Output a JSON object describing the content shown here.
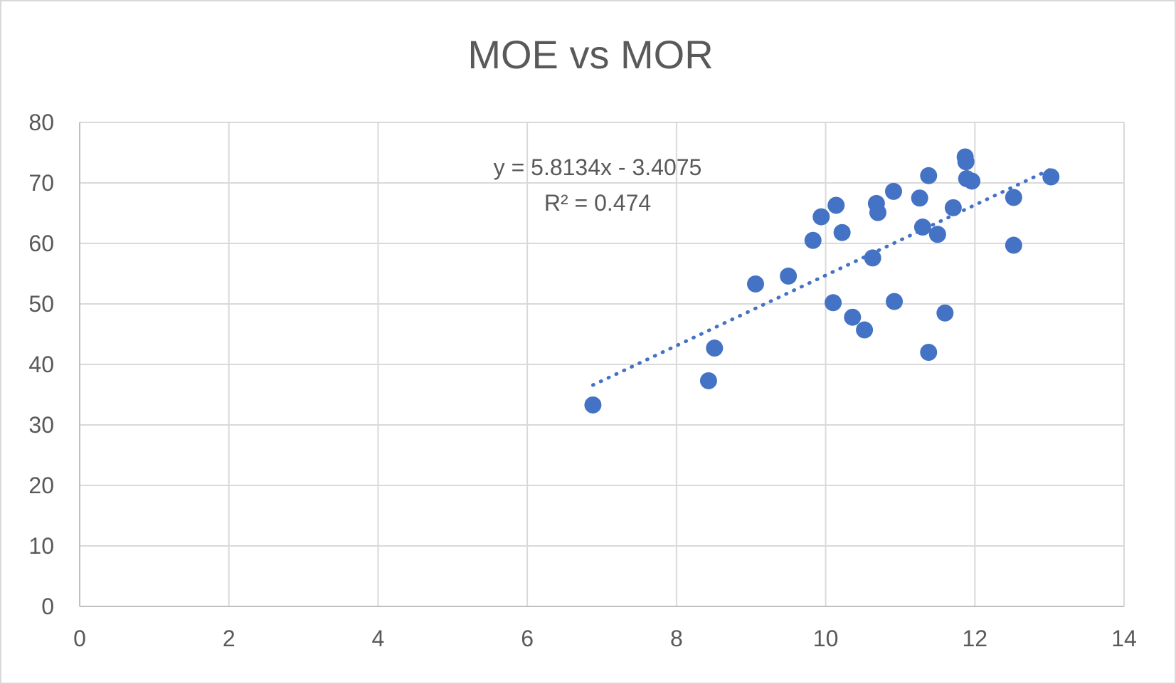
{
  "chart_data": {
    "type": "scatter",
    "title": "MOE vs MOR",
    "xlabel": "",
    "ylabel": "",
    "xlim": [
      0,
      14
    ],
    "ylim": [
      0,
      80
    ],
    "x_ticks": [
      "0",
      "2",
      "4",
      "6",
      "8",
      "10",
      "12",
      "14"
    ],
    "y_ticks": [
      "0",
      "10",
      "20",
      "30",
      "40",
      "50",
      "60",
      "70",
      "80"
    ],
    "grid": true,
    "legend": "none",
    "marker_color": "#4472c4",
    "series": [
      {
        "points": [
          {
            "x": 6.88,
            "y": 33.3
          },
          {
            "x": 8.43,
            "y": 37.3
          },
          {
            "x": 8.51,
            "y": 42.7
          },
          {
            "x": 9.06,
            "y": 53.3
          },
          {
            "x": 9.5,
            "y": 54.6
          },
          {
            "x": 9.83,
            "y": 60.5
          },
          {
            "x": 9.94,
            "y": 64.4
          },
          {
            "x": 10.1,
            "y": 50.2
          },
          {
            "x": 10.14,
            "y": 66.3
          },
          {
            "x": 10.22,
            "y": 61.8
          },
          {
            "x": 10.36,
            "y": 47.8
          },
          {
            "x": 10.52,
            "y": 45.7
          },
          {
            "x": 10.63,
            "y": 57.6
          },
          {
            "x": 10.68,
            "y": 66.6
          },
          {
            "x": 10.7,
            "y": 65.1
          },
          {
            "x": 10.91,
            "y": 68.6
          },
          {
            "x": 10.92,
            "y": 50.4
          },
          {
            "x": 11.26,
            "y": 67.5
          },
          {
            "x": 11.3,
            "y": 62.7
          },
          {
            "x": 11.38,
            "y": 71.2
          },
          {
            "x": 11.38,
            "y": 42.0
          },
          {
            "x": 11.5,
            "y": 61.5
          },
          {
            "x": 11.6,
            "y": 48.5
          },
          {
            "x": 11.71,
            "y": 65.9
          },
          {
            "x": 11.87,
            "y": 74.3
          },
          {
            "x": 11.88,
            "y": 73.5
          },
          {
            "x": 11.89,
            "y": 70.7
          },
          {
            "x": 11.96,
            "y": 70.3
          },
          {
            "x": 12.52,
            "y": 67.6
          },
          {
            "x": 12.52,
            "y": 59.7
          },
          {
            "x": 13.02,
            "y": 71.0
          }
        ]
      }
    ],
    "trendline": {
      "type": "linear",
      "slope": 5.8134,
      "intercept": -3.4075,
      "x_range": [
        6.88,
        13.02
      ],
      "equation": "y = 5.8134x - 3.4075",
      "r_squared": "R² = 0.474"
    }
  }
}
